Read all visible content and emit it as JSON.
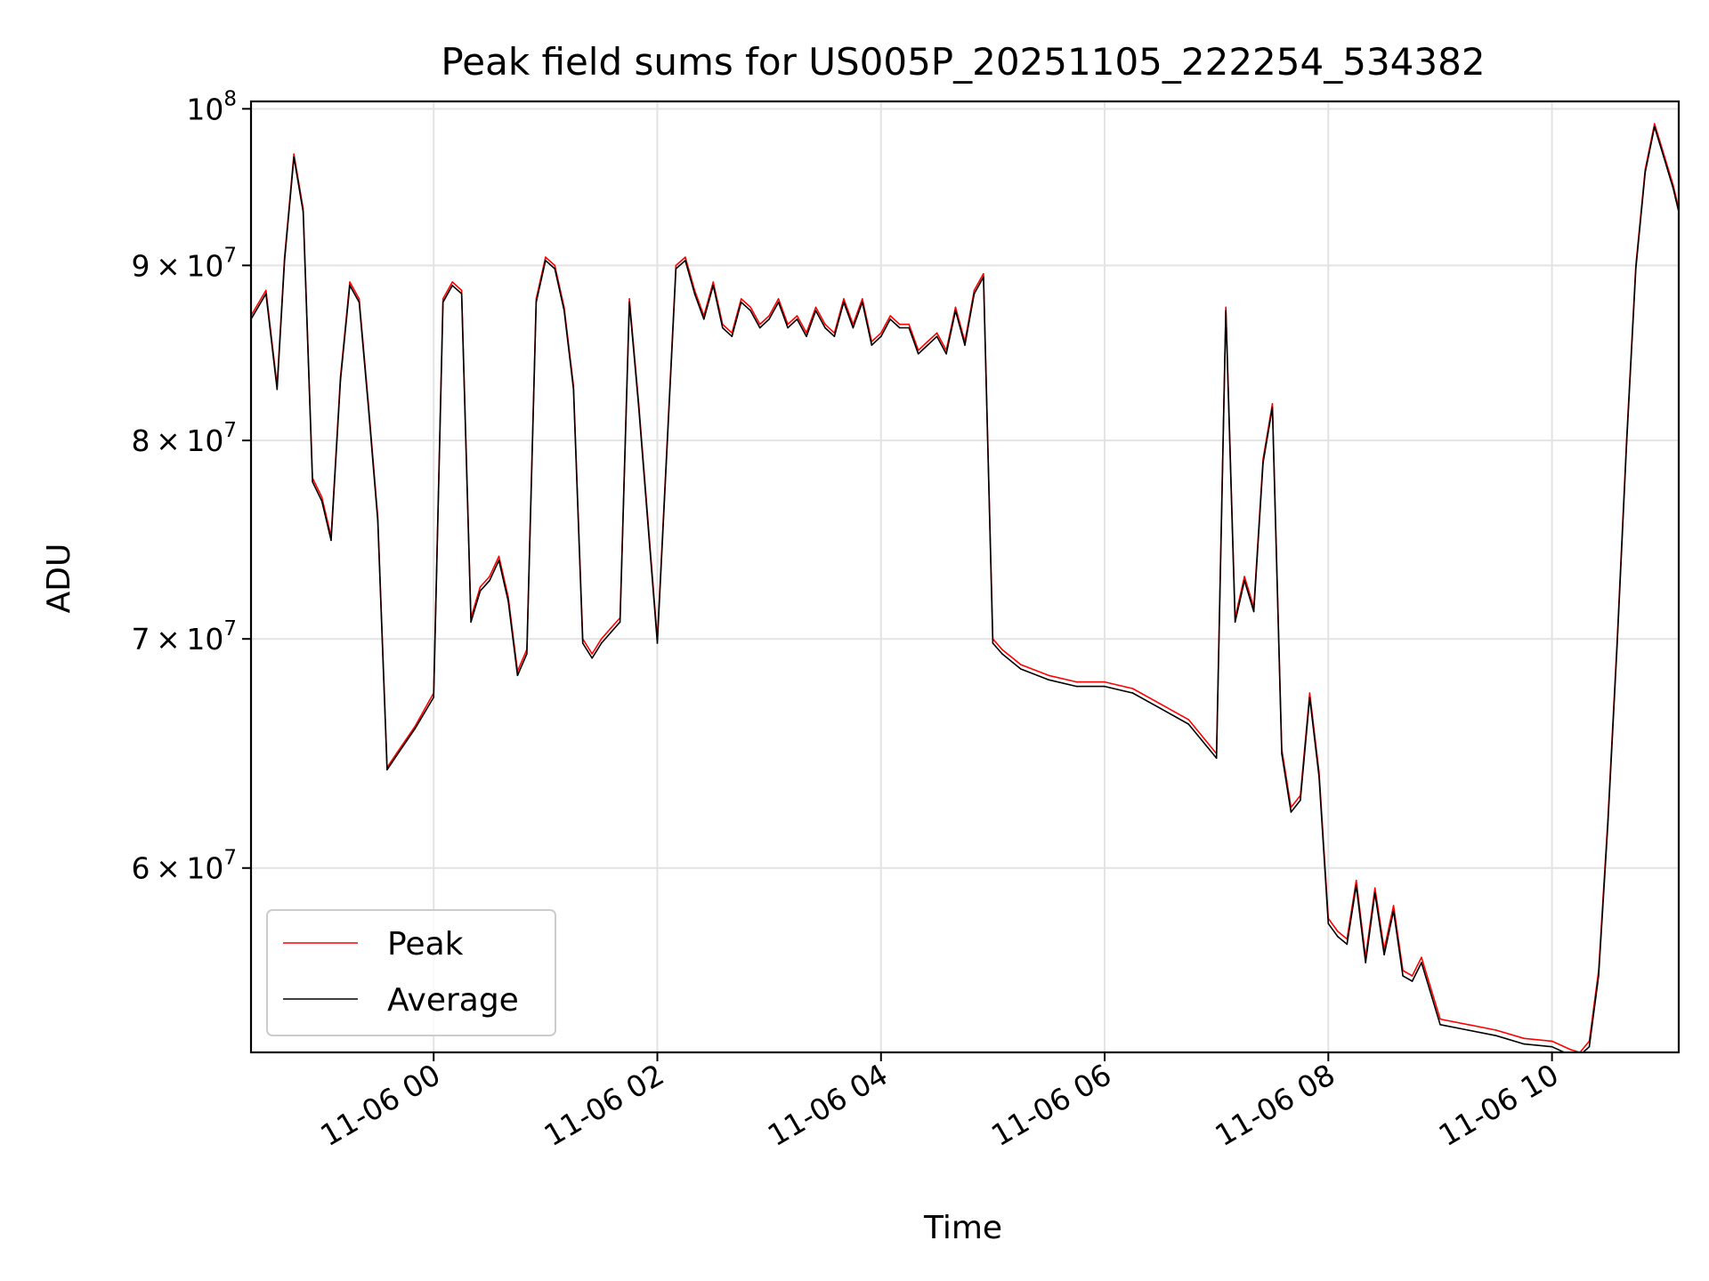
{
  "chart_data": {
    "type": "line",
    "title": "Peak field sums for US005P_20251105_222254_534382",
    "xlabel": "Time",
    "ylabel": "ADU",
    "y_scale": "log",
    "ylim": [
      53000000,
      100500000
    ],
    "xlim": [
      "2025-11-05 22:22",
      "2025-11-06 11:08"
    ],
    "x_ticks": [
      {
        "value": "2025-11-06 00:00",
        "label": "11-06 00"
      },
      {
        "value": "2025-11-06 02:00",
        "label": "11-06 02"
      },
      {
        "value": "2025-11-06 04:00",
        "label": "11-06 04"
      },
      {
        "value": "2025-11-06 06:00",
        "label": "11-06 06"
      },
      {
        "value": "2025-11-06 08:00",
        "label": "11-06 08"
      },
      {
        "value": "2025-11-06 10:00",
        "label": "11-06 10"
      }
    ],
    "y_ticks": [
      {
        "value": 60000000,
        "mantissa": "6",
        "base": "10",
        "exp": "7"
      },
      {
        "value": 70000000,
        "mantissa": "7",
        "base": "10",
        "exp": "7"
      },
      {
        "value": 80000000,
        "mantissa": "8",
        "base": "10",
        "exp": "7"
      },
      {
        "value": 90000000,
        "mantissa": "9",
        "base": "10",
        "exp": "7"
      },
      {
        "value": 100000000,
        "mantissa": "",
        "base": "10",
        "exp": "8"
      }
    ],
    "grid": true,
    "legend_position": "lower-left",
    "x": [
      "2025-11-05 22:22",
      "2025-11-05 22:30",
      "2025-11-05 22:36",
      "2025-11-05 22:40",
      "2025-11-05 22:45",
      "2025-11-05 22:50",
      "2025-11-05 22:55",
      "2025-11-05 23:00",
      "2025-11-05 23:05",
      "2025-11-05 23:10",
      "2025-11-05 23:15",
      "2025-11-05 23:20",
      "2025-11-05 23:25",
      "2025-11-05 23:30",
      "2025-11-05 23:35",
      "2025-11-05 23:40",
      "2025-11-05 23:50",
      "2025-11-06 00:00",
      "2025-11-06 00:05",
      "2025-11-06 00:10",
      "2025-11-06 00:15",
      "2025-11-06 00:20",
      "2025-11-06 00:25",
      "2025-11-06 00:30",
      "2025-11-06 00:35",
      "2025-11-06 00:40",
      "2025-11-06 00:45",
      "2025-11-06 00:50",
      "2025-11-06 00:55",
      "2025-11-06 01:00",
      "2025-11-06 01:05",
      "2025-11-06 01:10",
      "2025-11-06 01:15",
      "2025-11-06 01:20",
      "2025-11-06 01:25",
      "2025-11-06 01:30",
      "2025-11-06 01:35",
      "2025-11-06 01:40",
      "2025-11-06 01:45",
      "2025-11-06 01:50",
      "2025-11-06 02:00",
      "2025-11-06 02:10",
      "2025-11-06 02:15",
      "2025-11-06 02:20",
      "2025-11-06 02:25",
      "2025-11-06 02:30",
      "2025-11-06 02:35",
      "2025-11-06 02:40",
      "2025-11-06 02:45",
      "2025-11-06 02:50",
      "2025-11-06 02:55",
      "2025-11-06 03:00",
      "2025-11-06 03:05",
      "2025-11-06 03:10",
      "2025-11-06 03:15",
      "2025-11-06 03:20",
      "2025-11-06 03:25",
      "2025-11-06 03:30",
      "2025-11-06 03:35",
      "2025-11-06 03:40",
      "2025-11-06 03:45",
      "2025-11-06 03:50",
      "2025-11-06 03:55",
      "2025-11-06 04:00",
      "2025-11-06 04:05",
      "2025-11-06 04:10",
      "2025-11-06 04:15",
      "2025-11-06 04:20",
      "2025-11-06 04:25",
      "2025-11-06 04:30",
      "2025-11-06 04:35",
      "2025-11-06 04:40",
      "2025-11-06 04:45",
      "2025-11-06 04:50",
      "2025-11-06 04:55",
      "2025-11-06 05:00",
      "2025-11-06 05:05",
      "2025-11-06 05:15",
      "2025-11-06 05:30",
      "2025-11-06 05:45",
      "2025-11-06 06:00",
      "2025-11-06 06:15",
      "2025-11-06 06:30",
      "2025-11-06 06:45",
      "2025-11-06 07:00",
      "2025-11-06 07:05",
      "2025-11-06 07:10",
      "2025-11-06 07:15",
      "2025-11-06 07:20",
      "2025-11-06 07:25",
      "2025-11-06 07:30",
      "2025-11-06 07:35",
      "2025-11-06 07:40",
      "2025-11-06 07:45",
      "2025-11-06 07:50",
      "2025-11-06 07:55",
      "2025-11-06 08:00",
      "2025-11-06 08:05",
      "2025-11-06 08:10",
      "2025-11-06 08:15",
      "2025-11-06 08:20",
      "2025-11-06 08:25",
      "2025-11-06 08:30",
      "2025-11-06 08:35",
      "2025-11-06 08:40",
      "2025-11-06 08:45",
      "2025-11-06 08:50",
      "2025-11-06 09:00",
      "2025-11-06 09:15",
      "2025-11-06 09:30",
      "2025-11-06 09:45",
      "2025-11-06 10:00",
      "2025-11-06 10:10",
      "2025-11-06 10:15",
      "2025-11-06 10:20",
      "2025-11-06 10:25",
      "2025-11-06 10:30",
      "2025-11-06 10:35",
      "2025-11-06 10:40",
      "2025-11-06 10:45",
      "2025-11-06 10:50",
      "2025-11-06 10:55",
      "2025-11-06 11:00",
      "2025-11-06 11:05",
      "2025-11-06 11:08"
    ],
    "series": [
      {
        "name": "Peak",
        "color": "#ff0000",
        "values": [
          87000000,
          88500000,
          83000000,
          90500000,
          97000000,
          93500000,
          78000000,
          77000000,
          75000000,
          83500000,
          89000000,
          88000000,
          82000000,
          76000000,
          64200000,
          64800000,
          66000000,
          67500000,
          88000000,
          89000000,
          88500000,
          71000000,
          72500000,
          73000000,
          74000000,
          72000000,
          68500000,
          69500000,
          88000000,
          90500000,
          90000000,
          87500000,
          83000000,
          70000000,
          69300000,
          70000000,
          70500000,
          71000000,
          88000000,
          82000000,
          70000000,
          90000000,
          90500000,
          88500000,
          87000000,
          89000000,
          86500000,
          86000000,
          88000000,
          87500000,
          86500000,
          87000000,
          88000000,
          86500000,
          87000000,
          86000000,
          87500000,
          86500000,
          86000000,
          88000000,
          86500000,
          88000000,
          85500000,
          86000000,
          87000000,
          86500000,
          86500000,
          85000000,
          85500000,
          86000000,
          85000000,
          87500000,
          85500000,
          88500000,
          89500000,
          70000000,
          69500000,
          68800000,
          68300000,
          68000000,
          68000000,
          67700000,
          67000000,
          66300000,
          64800000,
          87500000,
          71000000,
          73000000,
          71500000,
          79000000,
          82000000,
          65000000,
          62500000,
          63000000,
          67500000,
          64000000,
          58000000,
          57500000,
          57200000,
          59500000,
          56500000,
          59200000,
          56800000,
          58500000,
          56000000,
          55800000,
          56500000,
          54200000,
          54000000,
          53800000,
          53500000,
          53400000,
          53100000,
          53000000,
          53400000,
          56000000,
          62000000,
          70000000,
          80000000,
          90000000,
          96000000,
          99000000,
          97000000,
          95000000,
          93500000
        ]
      },
      {
        "name": "Average",
        "color": "#000000",
        "values": [
          86800000,
          88300000,
          82800000,
          90300000,
          96800000,
          93300000,
          77800000,
          76800000,
          74800000,
          83300000,
          88800000,
          87800000,
          81800000,
          75800000,
          64100000,
          64700000,
          65900000,
          67300000,
          87800000,
          88800000,
          88300000,
          70800000,
          72300000,
          72800000,
          73800000,
          71800000,
          68300000,
          69300000,
          87800000,
          90300000,
          89800000,
          87300000,
          82800000,
          69800000,
          69100000,
          69800000,
          70300000,
          70800000,
          87800000,
          81800000,
          69800000,
          89800000,
          90300000,
          88300000,
          86800000,
          88800000,
          86300000,
          85800000,
          87800000,
          87300000,
          86300000,
          86800000,
          87800000,
          86300000,
          86800000,
          85800000,
          87300000,
          86300000,
          85800000,
          87800000,
          86300000,
          87800000,
          85300000,
          85800000,
          86800000,
          86300000,
          86300000,
          84800000,
          85300000,
          85800000,
          84800000,
          87300000,
          85300000,
          88300000,
          89300000,
          69800000,
          69300000,
          68600000,
          68100000,
          67800000,
          67800000,
          67500000,
          66800000,
          66100000,
          64600000,
          87300000,
          70800000,
          72800000,
          71300000,
          78800000,
          81800000,
          64800000,
          62300000,
          62800000,
          67300000,
          63800000,
          57800000,
          57300000,
          57000000,
          59300000,
          56300000,
          59000000,
          56600000,
          58300000,
          55800000,
          55600000,
          56300000,
          54000000,
          53800000,
          53600000,
          53300000,
          53200000,
          52900000,
          52900000,
          53200000,
          55800000,
          61800000,
          69800000,
          79800000,
          89800000,
          95800000,
          98800000,
          96800000,
          94800000,
          93300000
        ]
      }
    ]
  }
}
